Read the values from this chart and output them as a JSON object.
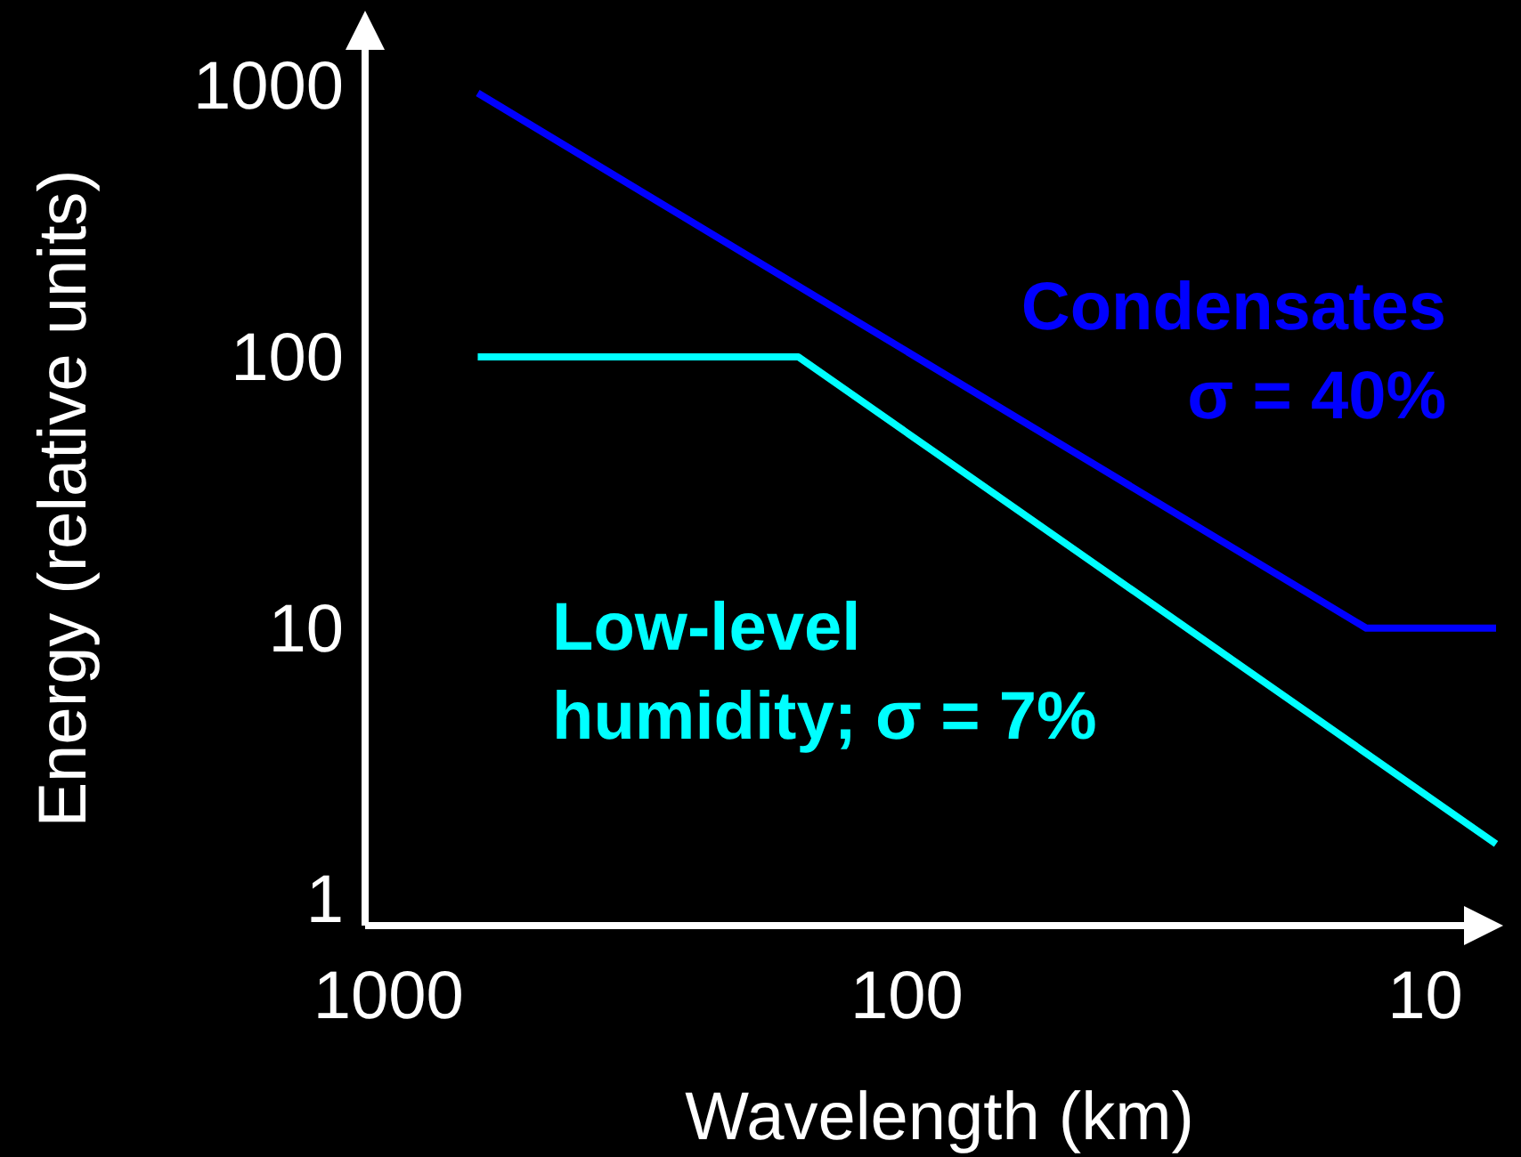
{
  "chart_data": {
    "type": "line",
    "xlabel": "Wavelength (km)",
    "ylabel": "Energy (relative units)",
    "log": "xy",
    "xlim": [
      1110,
      7.3
    ],
    "ylim": [
      0.8,
      1780
    ],
    "xticks": [
      1000,
      100,
      10
    ],
    "yticks": [
      1,
      10,
      100,
      1000
    ],
    "grid": false,
    "marker": "none",
    "line_style": "solid",
    "series": [
      {
        "name": "Condensates\nσ = 40%",
        "color": "#0000ff",
        "x": [
          673,
          13,
          7.3
        ],
        "values": [
          940,
          10,
          10
        ]
      },
      {
        "name": "Low-level\nhumidity; σ = 7%",
        "color": "#00ffff",
        "x": [
          673,
          162,
          7.3
        ],
        "values": [
          100,
          100,
          1.6
        ]
      }
    ]
  }
}
